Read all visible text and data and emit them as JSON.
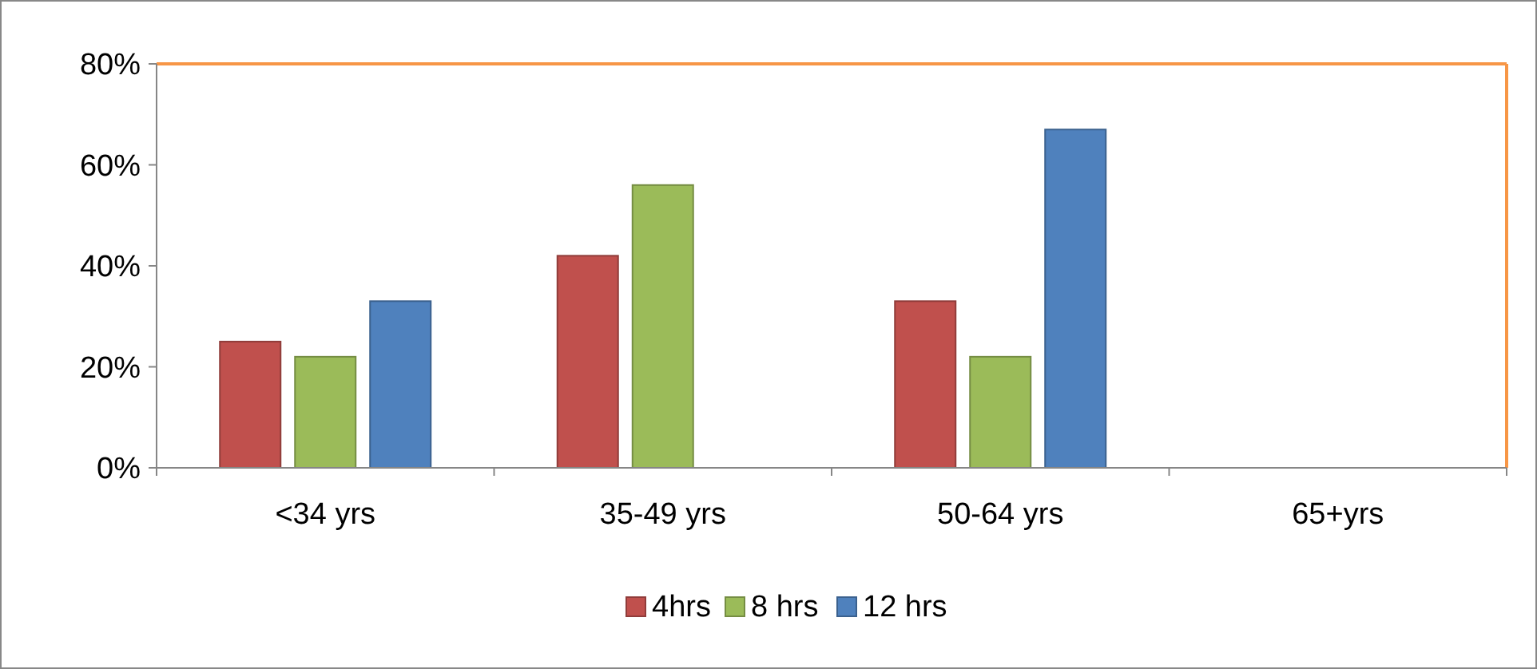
{
  "chart_data": {
    "type": "bar",
    "categories": [
      "<34 yrs",
      "35-49 yrs",
      "50-64 yrs",
      "65+yrs"
    ],
    "series": [
      {
        "name": "4hrs",
        "color": "#c0504d",
        "values": [
          25,
          42,
          33,
          0
        ]
      },
      {
        "name": "8 hrs",
        "color": "#9bbb59",
        "values": [
          22,
          56,
          22,
          0
        ]
      },
      {
        "name": "12 hrs",
        "color": "#4f81bd",
        "values": [
          33,
          0,
          67,
          0
        ]
      }
    ],
    "ylim": [
      0,
      80
    ],
    "yticks": [
      {
        "value": 0,
        "label": "0%"
      },
      {
        "value": 20,
        "label": "20%"
      },
      {
        "value": 40,
        "label": "40%"
      },
      {
        "value": 60,
        "label": "60%"
      },
      {
        "value": 80,
        "label": "80%"
      }
    ],
    "grid": false,
    "legend": "bottom"
  }
}
